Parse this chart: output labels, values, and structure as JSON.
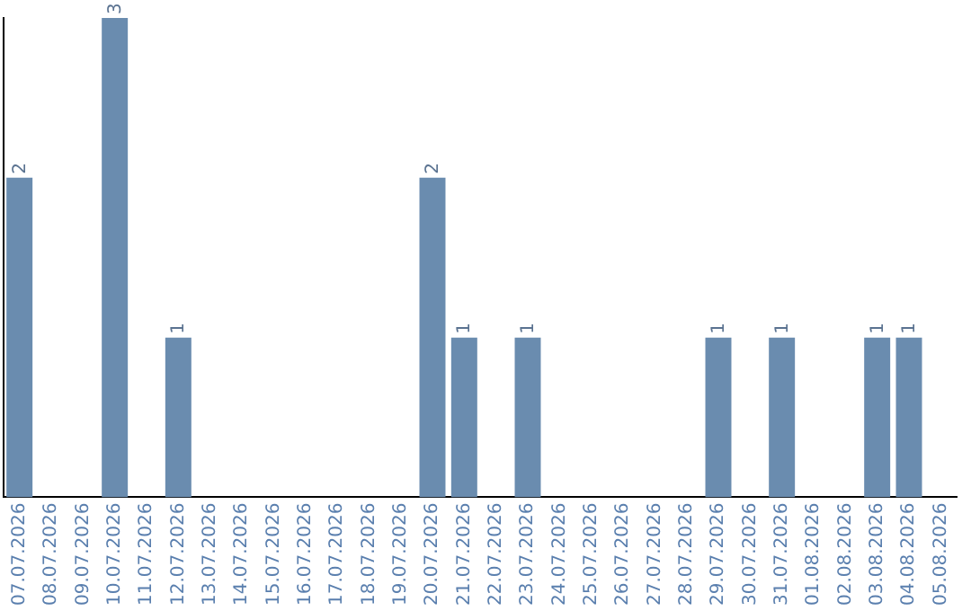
{
  "chart_data": {
    "type": "bar",
    "categories": [
      "07.07.2026",
      "08.07.2026",
      "09.07.2026",
      "10.07.2026",
      "11.07.2026",
      "12.07.2026",
      "13.07.2026",
      "14.07.2026",
      "15.07.2026",
      "16.07.2026",
      "17.07.2026",
      "18.07.2026",
      "19.07.2026",
      "20.07.2026",
      "21.07.2026",
      "22.07.2026",
      "23.07.2026",
      "24.07.2026",
      "25.07.2026",
      "26.07.2026",
      "27.07.2026",
      "28.07.2026",
      "29.07.2026",
      "30.07.2026",
      "31.07.2026",
      "01.08.2026",
      "02.08.2026",
      "03.08.2026",
      "04.08.2026",
      "05.08.2026"
    ],
    "values": [
      2,
      0,
      0,
      3,
      0,
      1,
      0,
      0,
      0,
      0,
      0,
      0,
      0,
      2,
      1,
      0,
      1,
      0,
      0,
      0,
      0,
      0,
      1,
      0,
      1,
      0,
      0,
      1,
      1,
      0
    ],
    "value_labels": [
      "2",
      null,
      null,
      "3",
      null,
      "1",
      null,
      null,
      null,
      null,
      null,
      null,
      null,
      "2",
      "1",
      null,
      "1",
      null,
      null,
      null,
      null,
      null,
      "1",
      null,
      "1",
      null,
      null,
      "1",
      "1",
      null
    ],
    "color": "#6a8caf",
    "tick_labels": "x",
    "grid": false,
    "legend": false
  }
}
